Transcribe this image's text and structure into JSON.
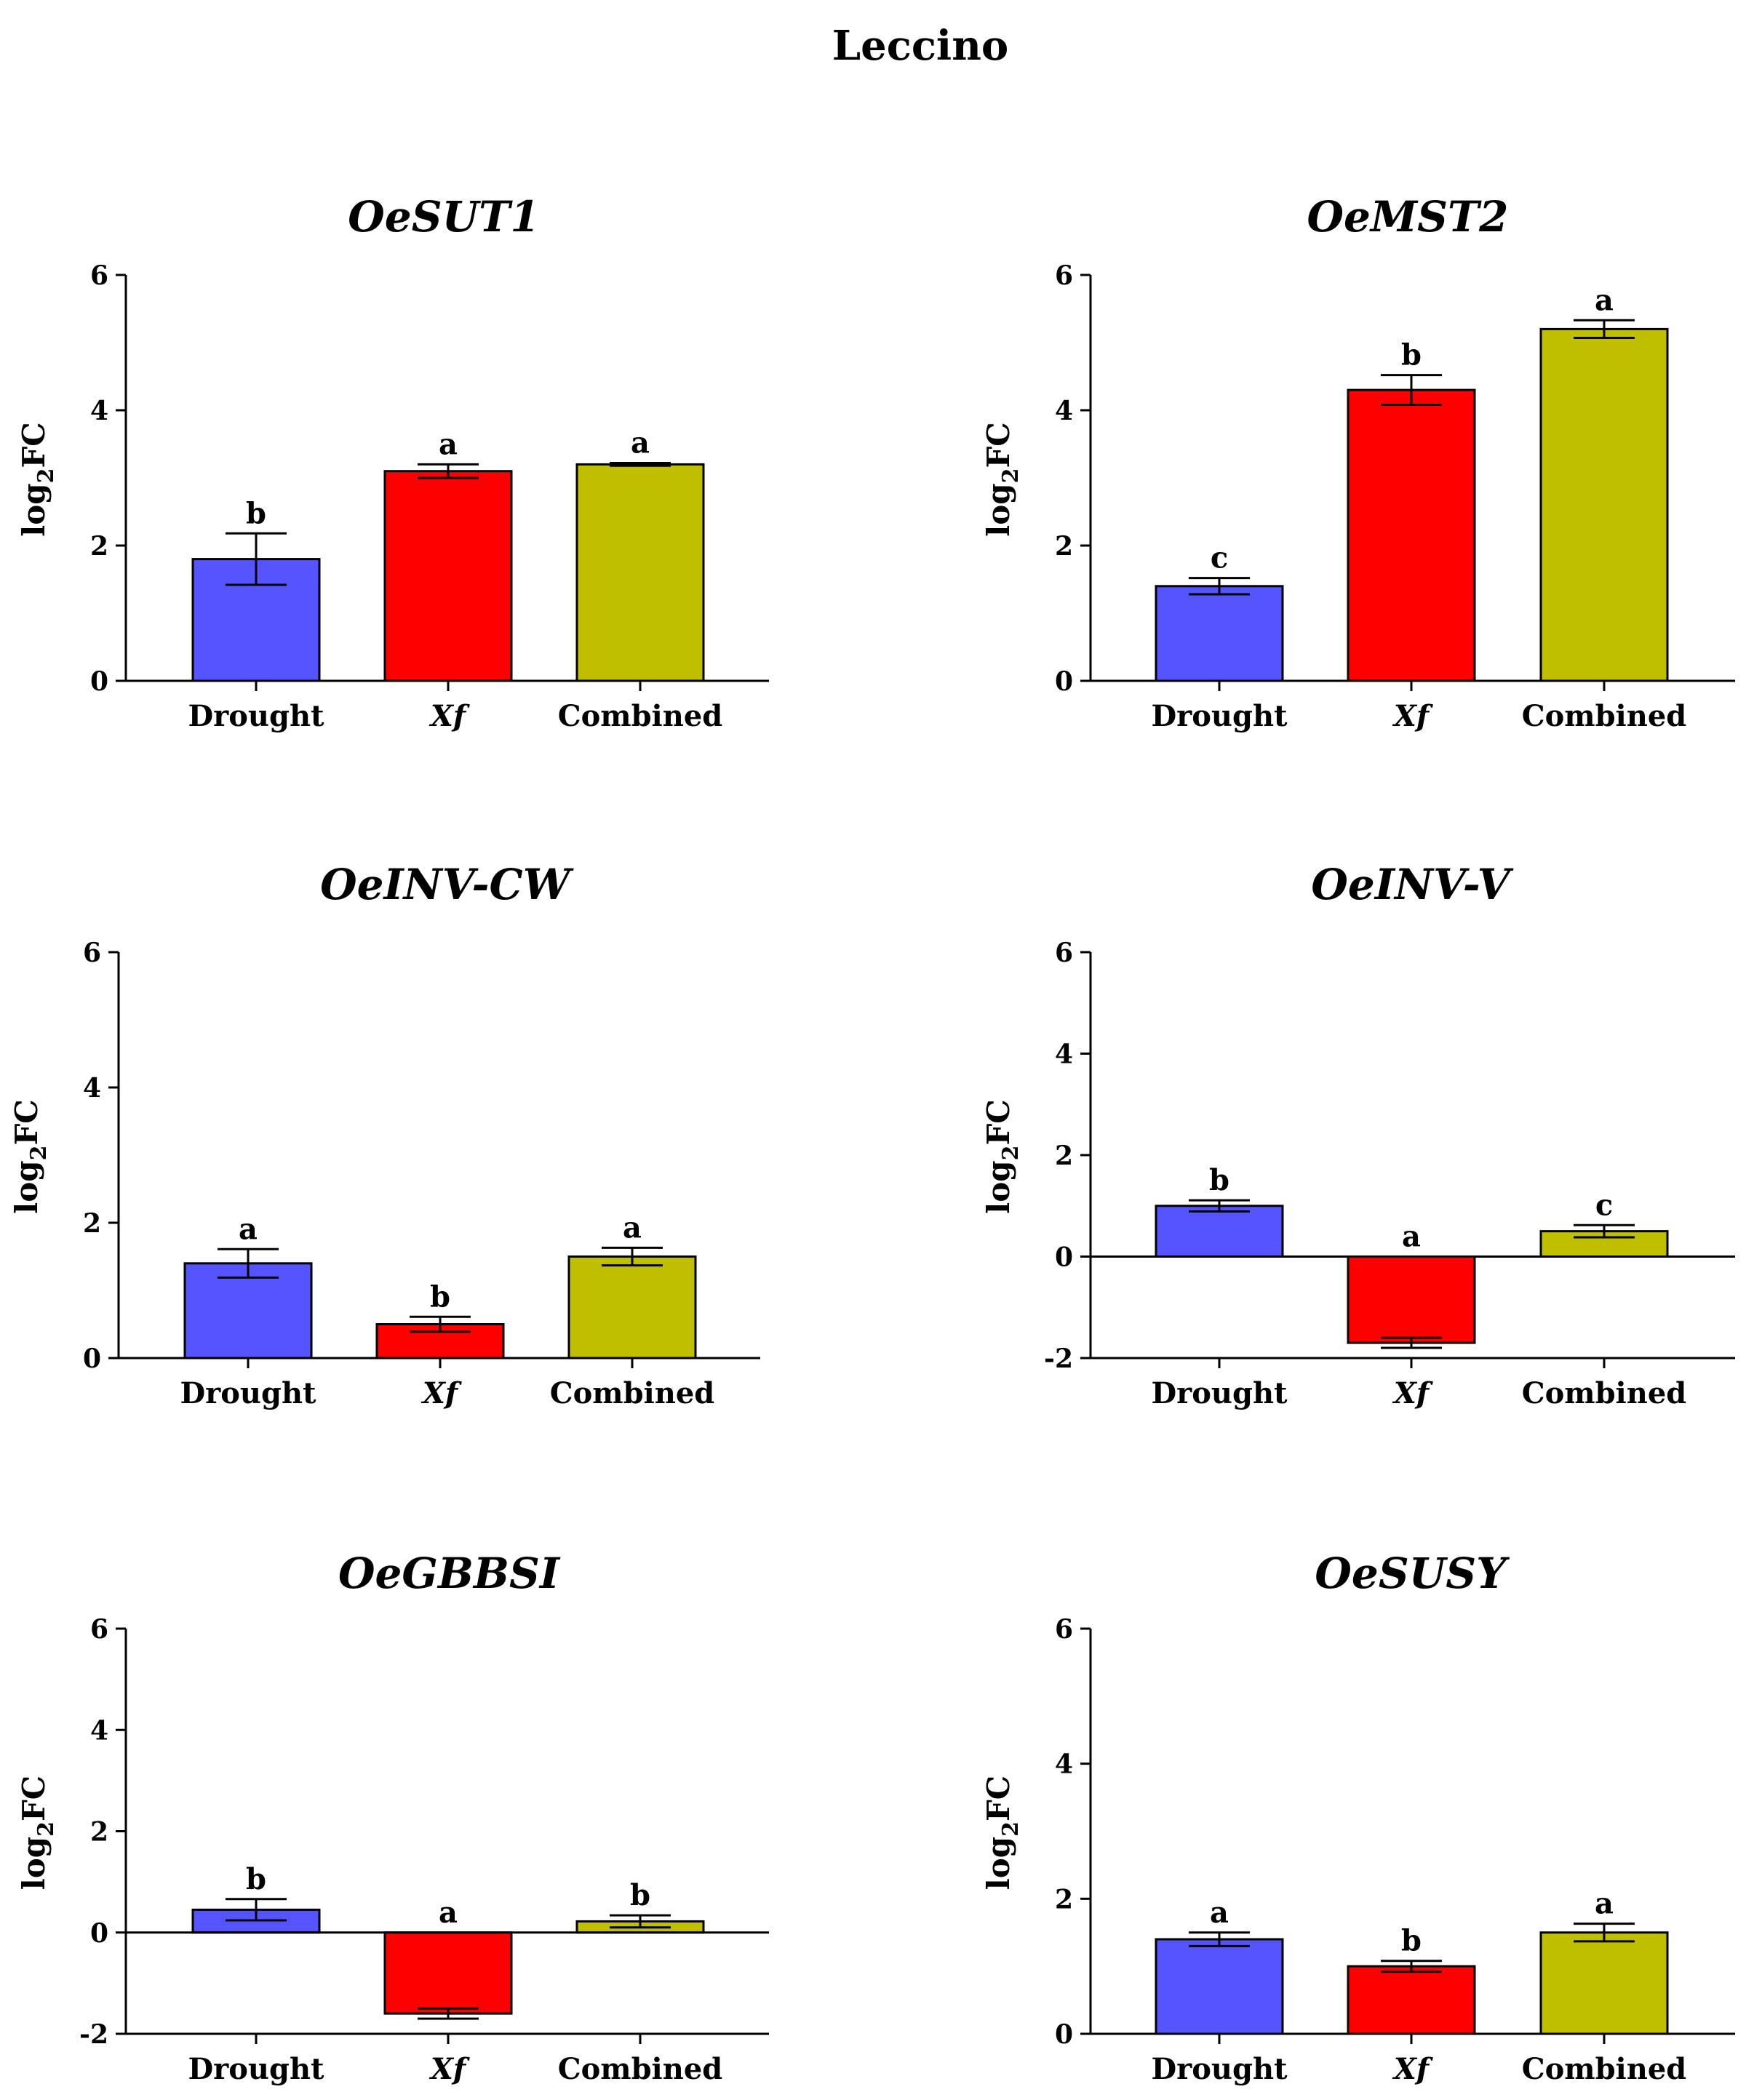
{
  "figure_title": "Leccino",
  "colors": {
    "Drought": "#5555ff",
    "Xf": "#ff0000",
    "Combined": "#bfbf00"
  },
  "chart_data": [
    {
      "type": "bar",
      "title": "OeSUT1",
      "categories": [
        "Drought",
        "Xf",
        "Combined"
      ],
      "values": [
        1.8,
        3.1,
        3.2
      ],
      "errors": [
        0.38,
        0.1,
        0.02
      ],
      "labels": [
        "b",
        "a",
        "a"
      ],
      "ylabel": "log2FC",
      "ylim": [
        0,
        6
      ],
      "yticks": [
        0,
        2,
        4,
        6
      ]
    },
    {
      "type": "bar",
      "title": "OeMST2",
      "categories": [
        "Drought",
        "Xf",
        "Combined"
      ],
      "values": [
        1.4,
        4.3,
        5.2
      ],
      "errors": [
        0.12,
        0.22,
        0.13
      ],
      "labels": [
        "c",
        "b",
        "a"
      ],
      "ylabel": "log2FC",
      "ylim": [
        0,
        6
      ],
      "yticks": [
        0,
        2,
        4,
        6
      ]
    },
    {
      "type": "bar",
      "title": "OeINV-CW",
      "categories": [
        "Drought",
        "Xf",
        "Combined"
      ],
      "values": [
        1.4,
        0.5,
        1.5
      ],
      "errors": [
        0.21,
        0.11,
        0.13
      ],
      "labels": [
        "a",
        "b",
        "a"
      ],
      "ylabel": "log2FC",
      "ylim": [
        0,
        6
      ],
      "yticks": [
        0,
        2,
        4,
        6
      ]
    },
    {
      "type": "bar",
      "title": "OeINV-V",
      "categories": [
        "Drought",
        "Xf",
        "Combined"
      ],
      "values": [
        1.0,
        -1.7,
        0.5
      ],
      "errors": [
        0.11,
        0.1,
        0.12
      ],
      "labels": [
        "b",
        "a",
        "c"
      ],
      "ylabel": "log2FC",
      "ylim": [
        -2,
        6
      ],
      "yticks": [
        -2,
        0,
        2,
        4,
        6
      ]
    },
    {
      "type": "bar",
      "title": "OeGBBSI",
      "categories": [
        "Drought",
        "Xf",
        "Combined"
      ],
      "values": [
        0.45,
        -1.6,
        0.22
      ],
      "errors": [
        0.21,
        0.1,
        0.12
      ],
      "labels": [
        "b",
        "a",
        "b"
      ],
      "ylabel": "log2FC",
      "ylim": [
        -2,
        6
      ],
      "yticks": [
        -2,
        0,
        2,
        4,
        6
      ]
    },
    {
      "type": "bar",
      "title": "OeSUSY",
      "categories": [
        "Drought",
        "Xf",
        "Combined"
      ],
      "values": [
        1.4,
        1.0,
        1.5
      ],
      "errors": [
        0.1,
        0.08,
        0.13
      ],
      "labels": [
        "a",
        "b",
        "a"
      ],
      "ylabel": "log2FC",
      "ylim": [
        0,
        6
      ],
      "yticks": [
        0,
        2,
        4,
        6
      ]
    }
  ]
}
